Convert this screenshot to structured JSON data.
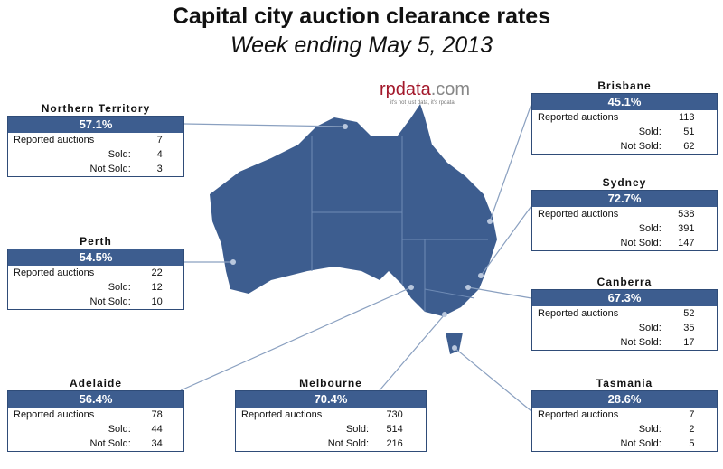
{
  "header": {
    "title": "Capital city auction clearance rates",
    "subtitle": "Week ending May 5, 2013"
  },
  "logo": {
    "brand": "rpdata",
    "domain": ".com",
    "tagline": "it's not just data, it's rpdata"
  },
  "regions": [
    {
      "name": "Northern Territory",
      "rate": "57.1%",
      "rows": [
        [
          "Reported auctions",
          "7"
        ],
        [
          "Sold:",
          "4"
        ],
        [
          "Not Sold:",
          "3"
        ]
      ]
    },
    {
      "name": "Perth",
      "rate": "54.5%",
      "rows": [
        [
          "Reported auctions",
          "22"
        ],
        [
          "Sold:",
          "12"
        ],
        [
          "Not Sold:",
          "10"
        ]
      ]
    },
    {
      "name": "Adelaide",
      "rate": "56.4%",
      "rows": [
        [
          "Reported auctions",
          "78"
        ],
        [
          "Sold:",
          "44"
        ],
        [
          "Not Sold:",
          "34"
        ]
      ]
    },
    {
      "name": "Melbourne",
      "rate": "70.4%",
      "rows": [
        [
          "Reported auctions",
          "730"
        ],
        [
          "Sold:",
          "514"
        ],
        [
          "Not Sold:",
          "216"
        ]
      ]
    },
    {
      "name": "Brisbane",
      "rate": "45.1%",
      "rows": [
        [
          "Reported auctions",
          "113"
        ],
        [
          "Sold:",
          "51"
        ],
        [
          "Not Sold:",
          "62"
        ]
      ]
    },
    {
      "name": "Sydney",
      "rate": "72.7%",
      "rows": [
        [
          "Reported auctions",
          "538"
        ],
        [
          "Sold:",
          "391"
        ],
        [
          "Not Sold:",
          "147"
        ]
      ]
    },
    {
      "name": "Canberra",
      "rate": "67.3%",
      "rows": [
        [
          "Reported auctions",
          "52"
        ],
        [
          "Sold:",
          "35"
        ],
        [
          "Not Sold:",
          "17"
        ]
      ]
    },
    {
      "name": "Tasmania",
      "rate": "28.6%",
      "rows": [
        [
          "Reported auctions",
          "7"
        ],
        [
          "Sold:",
          "2"
        ],
        [
          "Not Sold:",
          "5"
        ]
      ]
    }
  ]
}
